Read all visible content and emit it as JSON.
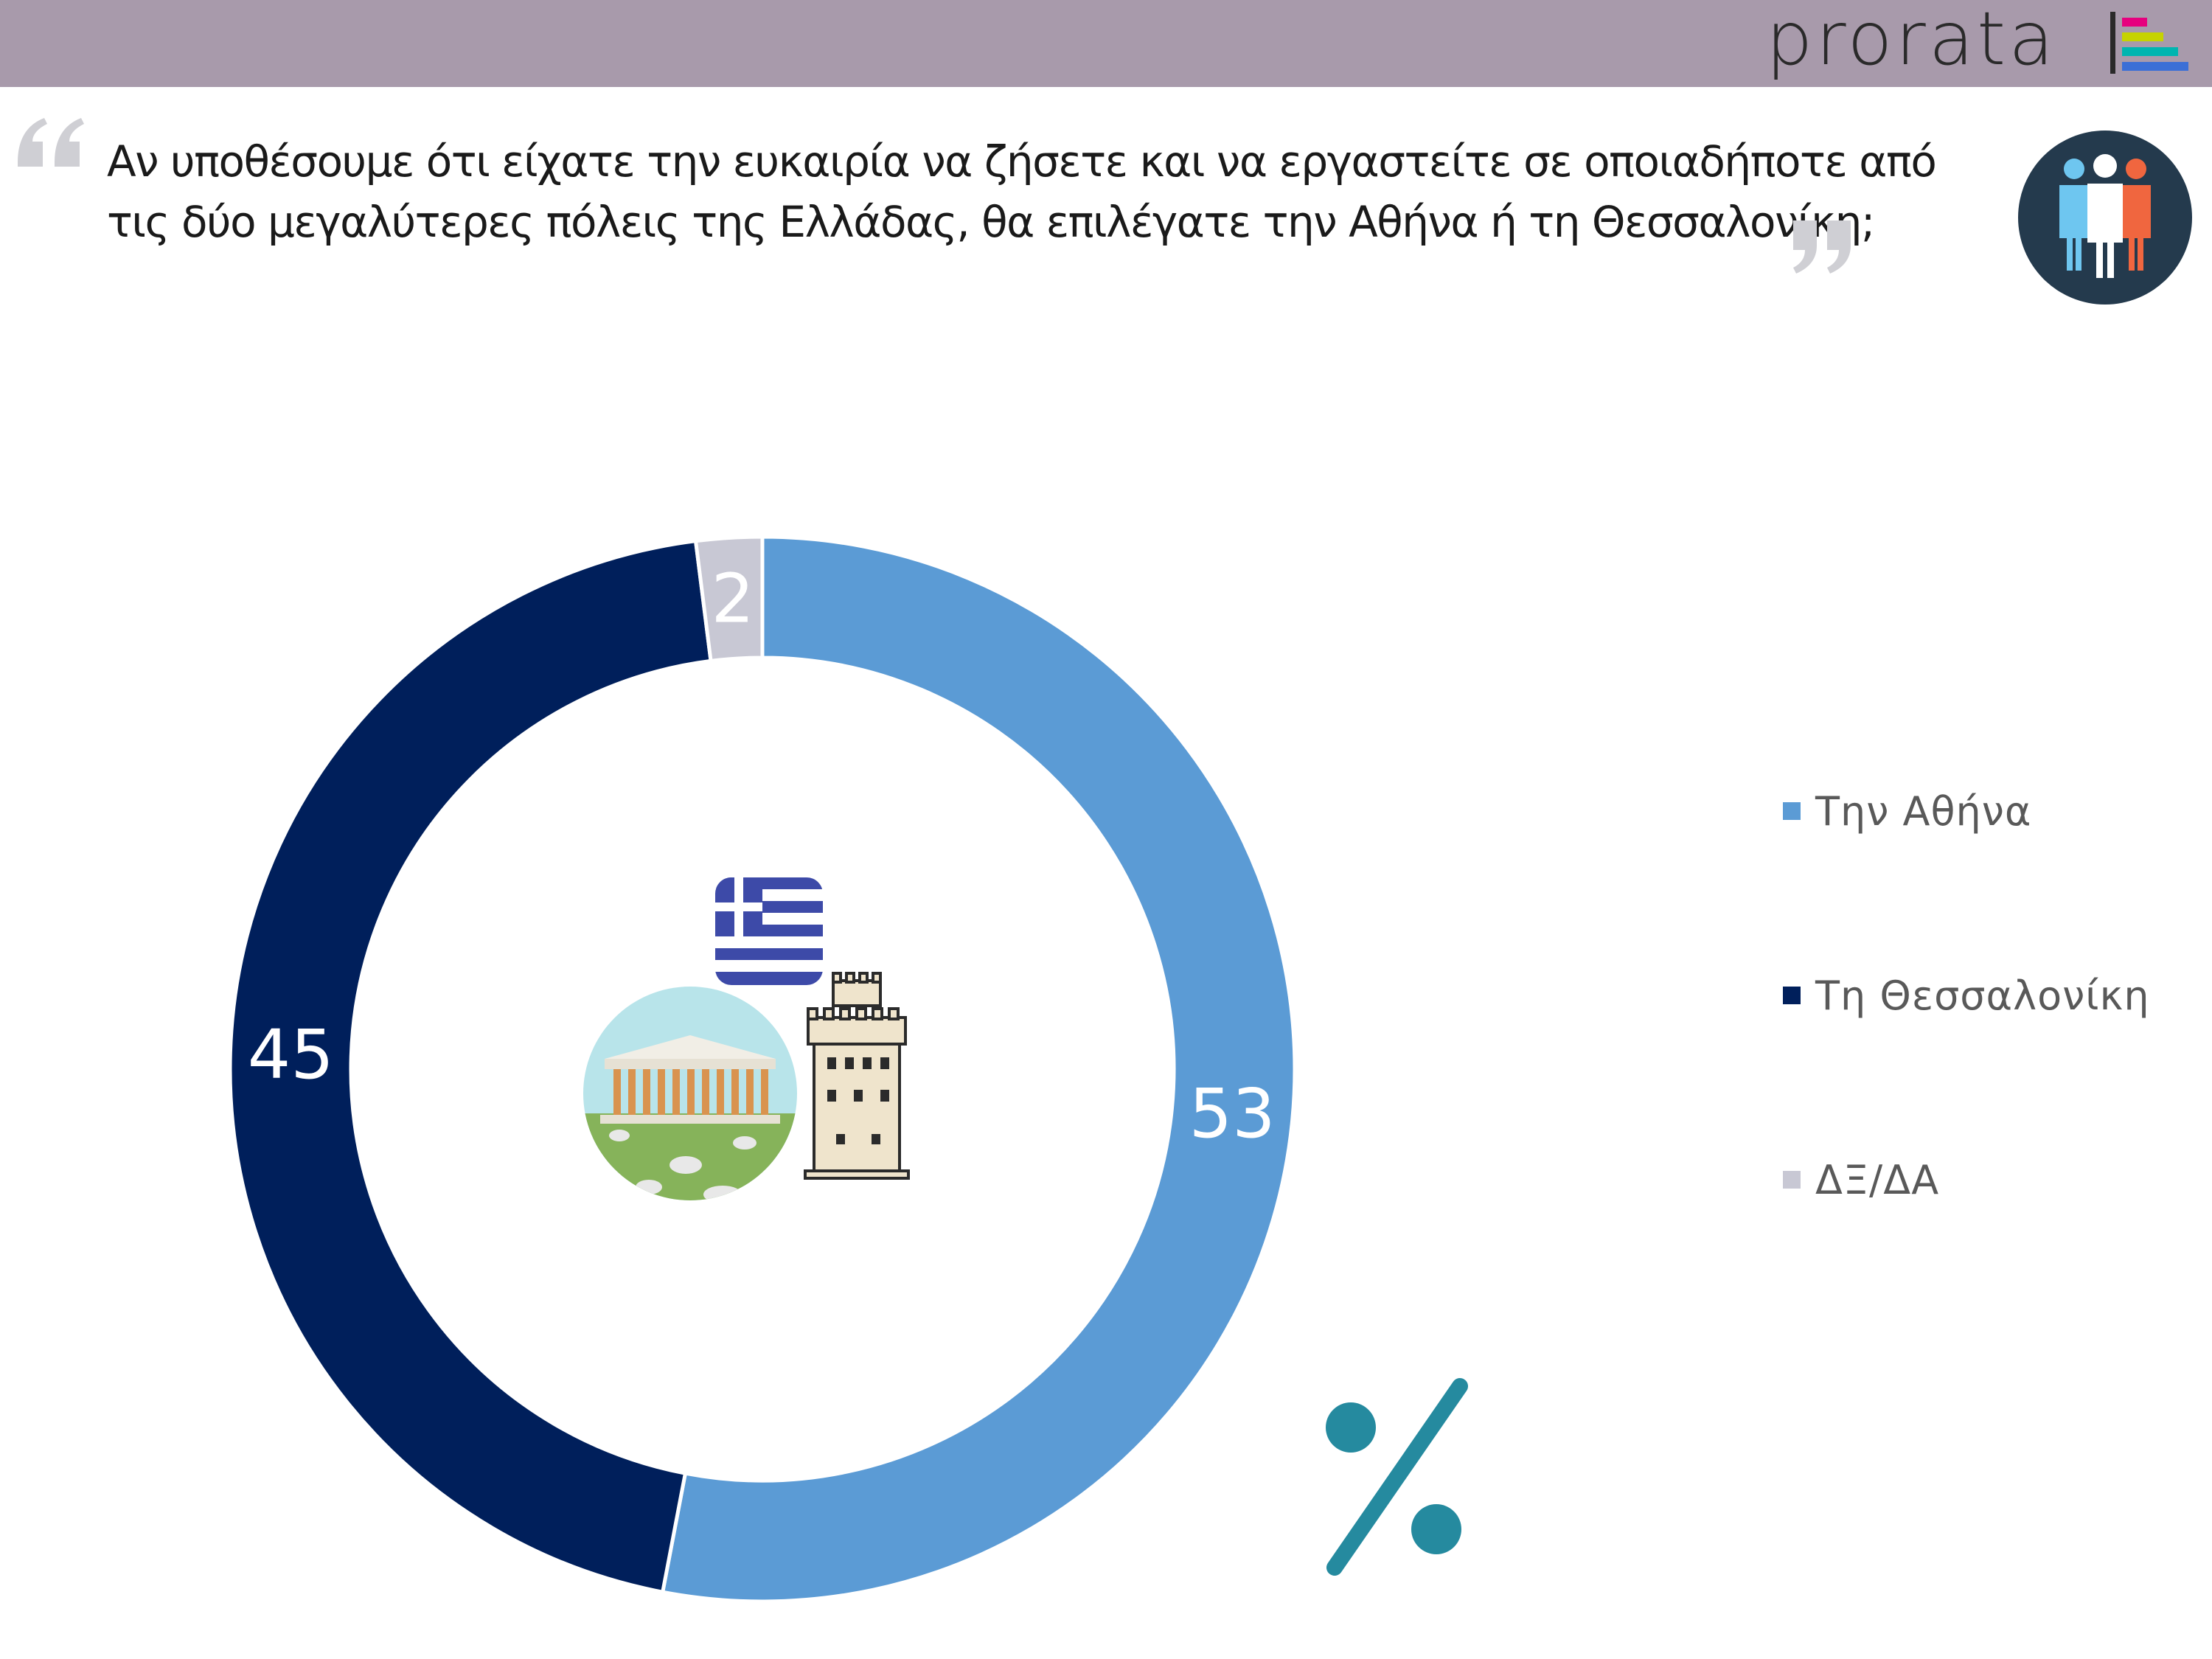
{
  "header": {
    "logo_text": "prorata",
    "bar_color": "#a89aab"
  },
  "question": {
    "text": "Αν υποθέσουμε ότι είχατε την ευκαιρία να ζήσετε και να εργαστείτε σε οποιαδήποτε από τις δύο μεγαλύτερες πόλεις της Ελλάδας, θα επιλέγατε την Αθήνα ή τη Θεσσαλονίκη;"
  },
  "icons": {
    "quote_open": "quote-open-icon",
    "quote_close": "quote-close-icon",
    "people": "people-group-icon",
    "flag": "greek-flag-icon",
    "parthenon": "parthenon-icon",
    "white_tower": "white-tower-icon",
    "percent": "percent-sign-icon"
  },
  "chart_data": {
    "type": "pie",
    "variant": "donut",
    "categories": [
      "Την Αθήνα",
      "Τη Θεσσαλονίκη",
      "ΔΞ/ΔΑ"
    ],
    "values": [
      53,
      45,
      2
    ],
    "data_labels": [
      "53",
      "45",
      "2"
    ],
    "colors": [
      "#5b9bd5",
      "#001f5b",
      "#c8c8d4"
    ],
    "legend_position": "right",
    "unit": "%"
  }
}
